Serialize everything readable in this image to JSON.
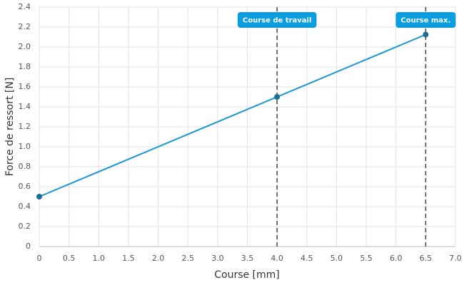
{
  "chart_data": {
    "type": "line",
    "xlabel": "Course [mm]",
    "ylabel": "Force de ressort [N]",
    "x": [
      0,
      4,
      6.5
    ],
    "series": [
      {
        "color": "#1a96d4",
        "marker_color": "#1b6f96",
        "values": [
          0.5,
          1.5,
          2.125
        ]
      }
    ],
    "xlim": [
      0,
      7
    ],
    "ylim": [
      0,
      2.4
    ],
    "xticks": [
      0,
      0.5,
      {
        "value": 1,
        "label": "1.0"
      },
      1.5,
      {
        "value": 2,
        "label": "2.0"
      },
      2.5,
      {
        "value": 3,
        "label": "3.0"
      },
      3.5,
      {
        "value": 4,
        "label": "4.0"
      },
      4.5,
      {
        "value": 5,
        "label": "5.0"
      },
      5.5,
      {
        "value": 6,
        "label": "6.0"
      },
      6.5,
      {
        "value": 7,
        "label": "7.0"
      }
    ],
    "yticks": [
      0,
      0.2,
      0.4,
      0.6,
      0.8,
      {
        "value": 1,
        "label": "1.0"
      },
      1.2,
      1.4,
      1.6,
      1.8,
      {
        "value": 2,
        "label": "2.0"
      },
      2.2,
      2.4
    ],
    "grid": true,
    "annotations": [
      {
        "x": 4,
        "label": "Course de travail"
      },
      {
        "x": 6.5,
        "label": "Course max."
      }
    ],
    "annotation_color": "#0a9de0"
  }
}
